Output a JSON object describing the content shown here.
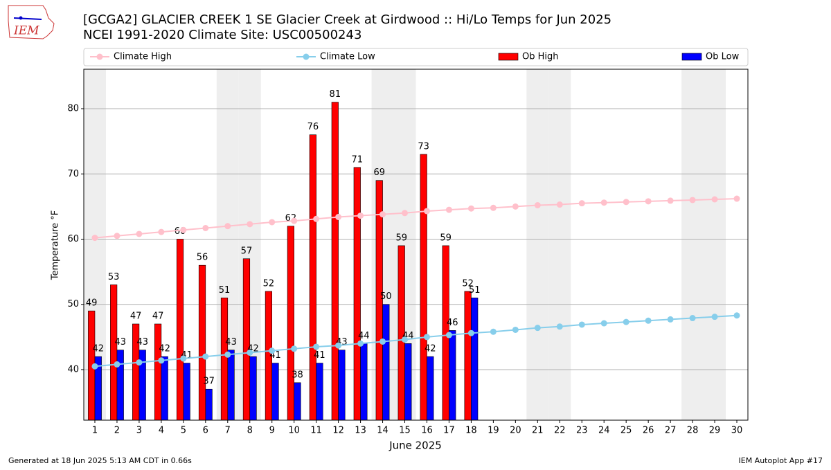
{
  "chart_data": {
    "type": "bar",
    "title": "[GCGA2] GLACIER CREEK 1 SE Glacier Creek at Girdwood :: Hi/Lo Temps for Jun 2025",
    "subtitle": "NCEI 1991-2020 Climate Site: USC00500243",
    "logo_text": "IEM",
    "xlabel": "June 2025",
    "ylabel": "Temperature °F",
    "x": [
      1,
      2,
      3,
      4,
      5,
      6,
      7,
      8,
      9,
      10,
      11,
      12,
      13,
      14,
      15,
      16,
      17,
      18,
      19,
      20,
      21,
      22,
      23,
      24,
      25,
      26,
      27,
      28,
      29,
      30
    ],
    "xlim": [
      0.5,
      30.5
    ],
    "xticks": [
      1,
      2,
      3,
      4,
      5,
      6,
      7,
      8,
      9,
      10,
      11,
      12,
      13,
      14,
      15,
      16,
      17,
      18,
      19,
      20,
      21,
      22,
      23,
      24,
      25,
      26,
      27,
      28,
      29,
      30
    ],
    "ylim": [
      32.25,
      86.05
    ],
    "yticks": [
      40,
      50,
      60,
      70,
      80
    ],
    "grid": true,
    "highlight_x": [
      1,
      7,
      8,
      14,
      15,
      21,
      22,
      28,
      29
    ],
    "highlight_color": "#eeeeee",
    "series": [
      {
        "name": "Climate High",
        "type": "line",
        "color": "#ffc0cb",
        "values": [
          60.2,
          60.5,
          60.8,
          61.1,
          61.4,
          61.7,
          62.0,
          62.3,
          62.6,
          62.8,
          63.1,
          63.4,
          63.6,
          63.8,
          64.0,
          64.3,
          64.5,
          64.7,
          64.8,
          65.0,
          65.2,
          65.3,
          65.5,
          65.6,
          65.7,
          65.8,
          65.9,
          66.0,
          66.1,
          66.2
        ]
      },
      {
        "name": "Climate Low",
        "type": "line",
        "color": "#87ceeb",
        "values": [
          40.5,
          40.8,
          41.1,
          41.4,
          41.7,
          42.0,
          42.3,
          42.6,
          42.9,
          43.2,
          43.5,
          43.7,
          44.0,
          44.3,
          44.6,
          45.0,
          45.3,
          45.6,
          45.8,
          46.1,
          46.4,
          46.6,
          46.9,
          47.1,
          47.3,
          47.5,
          47.7,
          47.9,
          48.1,
          48.3
        ]
      },
      {
        "name": "Ob High",
        "type": "bar",
        "color": "#ff0000",
        "offset": -1,
        "values": [
          49,
          53,
          47,
          47,
          60,
          56,
          51,
          57,
          52,
          62,
          76,
          81,
          71,
          69,
          59,
          73,
          59,
          52,
          null,
          null,
          null,
          null,
          null,
          null,
          null,
          null,
          null,
          null,
          null,
          null
        ]
      },
      {
        "name": "Ob Low",
        "type": "bar",
        "color": "#0000ff",
        "offset": 1,
        "values": [
          42,
          43,
          43,
          42,
          41,
          37,
          43,
          42,
          41,
          38,
          41,
          43,
          44,
          50,
          44,
          42,
          46,
          51,
          null,
          null,
          null,
          null,
          null,
          null,
          null,
          null,
          null,
          null,
          null,
          null
        ]
      }
    ],
    "footer_left": "Generated at 18 Jun 2025 5:13 AM CDT in 0.66s",
    "footer_right": "IEM Autoplot App #17"
  }
}
